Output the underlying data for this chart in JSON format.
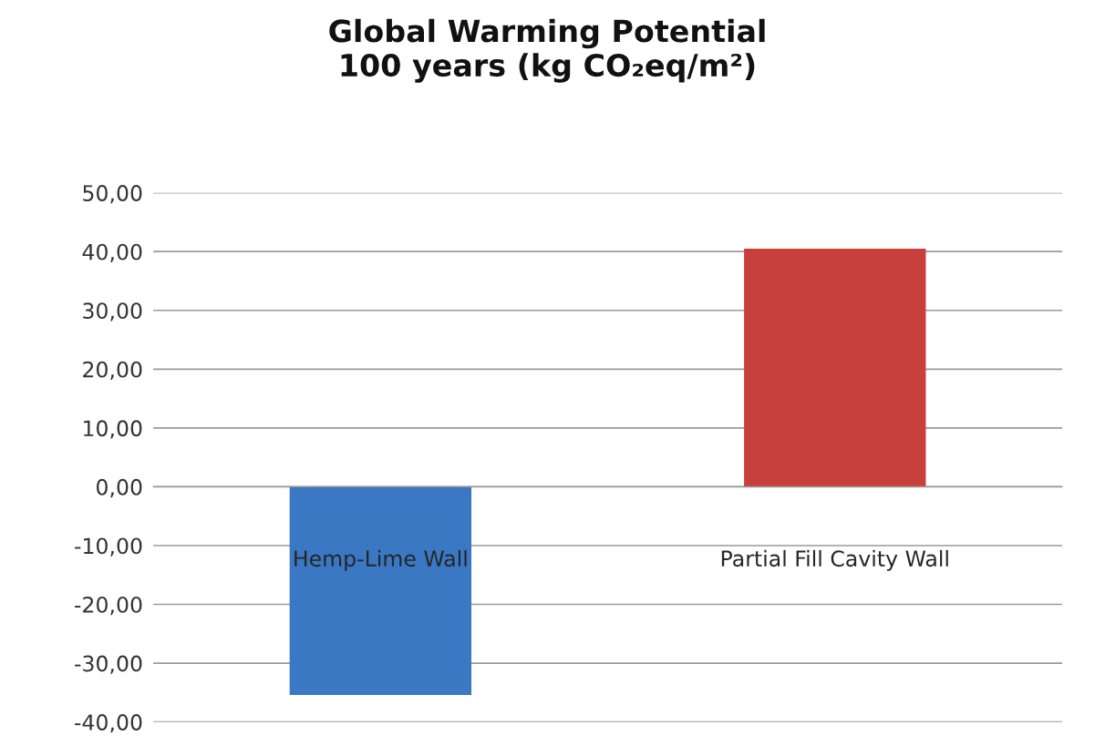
{
  "chart_data": {
    "type": "bar",
    "title": "Global Warming Potential\n100 years (kg CO₂eq/m²)",
    "categories": [
      "Hemp-Lime Wall",
      "Partial Fill Cavity Wall"
    ],
    "values": [
      -35.4,
      40.5
    ],
    "colors": [
      "#3b78c4",
      "#c8403b"
    ],
    "ylim": [
      -40,
      50
    ],
    "yticks": [
      {
        "value": -40,
        "label": "-40,00"
      },
      {
        "value": -30,
        "label": "-30,00"
      },
      {
        "value": -20,
        "label": "-20,00"
      },
      {
        "value": -10,
        "label": "-10,00"
      },
      {
        "value": 0,
        "label": "0,00"
      },
      {
        "value": 10,
        "label": "10,00"
      },
      {
        "value": 20,
        "label": "20,00"
      },
      {
        "value": 30,
        "label": "30,00"
      },
      {
        "value": 40,
        "label": "40,00"
      },
      {
        "value": 50,
        "label": "50,00"
      }
    ],
    "grid": "y",
    "legend": false
  }
}
